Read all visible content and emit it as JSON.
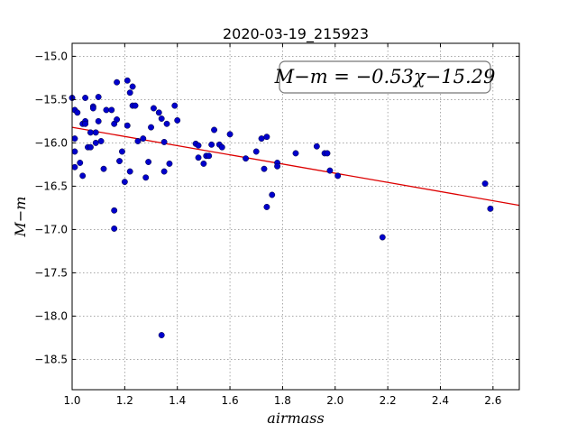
{
  "chart_data": {
    "type": "scatter",
    "title": "2020-03-19_215923",
    "xlabel": "airmass",
    "ylabel": "M−m",
    "xlim": [
      1.0,
      2.7
    ],
    "ylim": [
      -18.85,
      -14.85
    ],
    "y_inverted": true,
    "grid": true,
    "x_ticks": [
      1.0,
      1.2,
      1.4,
      1.6,
      1.8,
      2.0,
      2.2,
      2.4,
      2.6
    ],
    "x_tick_labels": [
      "1.0",
      "1.2",
      "1.4",
      "1.6",
      "1.8",
      "2.0",
      "2.2",
      "2.4",
      "2.6"
    ],
    "y_ticks": [
      -15.0,
      -15.5,
      -16.0,
      -16.5,
      -17.0,
      -17.5,
      -18.0,
      -18.5
    ],
    "y_tick_labels": [
      "−15.0",
      "−15.5",
      "−16.0",
      "−16.5",
      "−17.0",
      "−17.5",
      "−18.0",
      "−18.5"
    ],
    "annotation": "M−m = −0.53χ−15.29",
    "fit": {
      "slope": -0.53,
      "intercept": -15.29,
      "x_range": [
        1.0,
        2.7
      ]
    },
    "colors": {
      "points": "#0000cc",
      "fit_line": "#dd0000"
    },
    "series": [
      {
        "type": "scatter",
        "points": [
          [
            1.0,
            -15.48
          ],
          [
            1.01,
            -15.62
          ],
          [
            1.01,
            -15.95
          ],
          [
            1.01,
            -16.1
          ],
          [
            1.01,
            -16.28
          ],
          [
            1.02,
            -15.65
          ],
          [
            1.03,
            -16.23
          ],
          [
            1.04,
            -15.78
          ],
          [
            1.04,
            -16.38
          ],
          [
            1.05,
            -15.48
          ],
          [
            1.05,
            -15.75
          ],
          [
            1.05,
            -15.78
          ],
          [
            1.06,
            -16.05
          ],
          [
            1.07,
            -15.88
          ],
          [
            1.07,
            -16.05
          ],
          [
            1.08,
            -15.58
          ],
          [
            1.08,
            -15.6
          ],
          [
            1.09,
            -15.88
          ],
          [
            1.09,
            -16.0
          ],
          [
            1.1,
            -15.47
          ],
          [
            1.1,
            -15.75
          ],
          [
            1.11,
            -15.98
          ],
          [
            1.12,
            -16.3
          ],
          [
            1.13,
            -15.62
          ],
          [
            1.15,
            -15.62
          ],
          [
            1.16,
            -15.78
          ],
          [
            1.16,
            -16.78
          ],
          [
            1.16,
            -16.99
          ],
          [
            1.17,
            -15.3
          ],
          [
            1.17,
            -15.73
          ],
          [
            1.18,
            -16.21
          ],
          [
            1.19,
            -16.1
          ],
          [
            1.2,
            -16.45
          ],
          [
            1.21,
            -15.28
          ],
          [
            1.21,
            -15.8
          ],
          [
            1.22,
            -15.42
          ],
          [
            1.22,
            -16.33
          ],
          [
            1.23,
            -15.35
          ],
          [
            1.23,
            -15.57
          ],
          [
            1.24,
            -15.57
          ],
          [
            1.25,
            -15.98
          ],
          [
            1.27,
            -15.95
          ],
          [
            1.28,
            -16.4
          ],
          [
            1.29,
            -16.22
          ],
          [
            1.3,
            -15.82
          ],
          [
            1.31,
            -15.6
          ],
          [
            1.33,
            -15.65
          ],
          [
            1.34,
            -15.72
          ],
          [
            1.34,
            -18.22
          ],
          [
            1.35,
            -16.33
          ],
          [
            1.35,
            -15.99
          ],
          [
            1.36,
            -15.78
          ],
          [
            1.37,
            -16.24
          ],
          [
            1.39,
            -15.57
          ],
          [
            1.4,
            -15.74
          ],
          [
            1.47,
            -16.01
          ],
          [
            1.48,
            -16.03
          ],
          [
            1.48,
            -16.17
          ],
          [
            1.5,
            -16.24
          ],
          [
            1.51,
            -16.15
          ],
          [
            1.52,
            -16.15
          ],
          [
            1.53,
            -16.02
          ],
          [
            1.54,
            -15.85
          ],
          [
            1.56,
            -16.02
          ],
          [
            1.57,
            -16.05
          ],
          [
            1.6,
            -15.9
          ],
          [
            1.66,
            -16.18
          ],
          [
            1.7,
            -16.1
          ],
          [
            1.72,
            -15.95
          ],
          [
            1.73,
            -16.3
          ],
          [
            1.74,
            -15.93
          ],
          [
            1.74,
            -16.74
          ],
          [
            1.76,
            -16.6
          ],
          [
            1.78,
            -16.23
          ],
          [
            1.78,
            -16.27
          ],
          [
            1.85,
            -16.12
          ],
          [
            1.93,
            -16.04
          ],
          [
            1.96,
            -16.12
          ],
          [
            1.97,
            -16.12
          ],
          [
            1.98,
            -16.32
          ],
          [
            2.01,
            -16.38
          ],
          [
            2.18,
            -17.09
          ],
          [
            2.57,
            -16.47
          ],
          [
            2.59,
            -16.76
          ]
        ]
      }
    ]
  }
}
